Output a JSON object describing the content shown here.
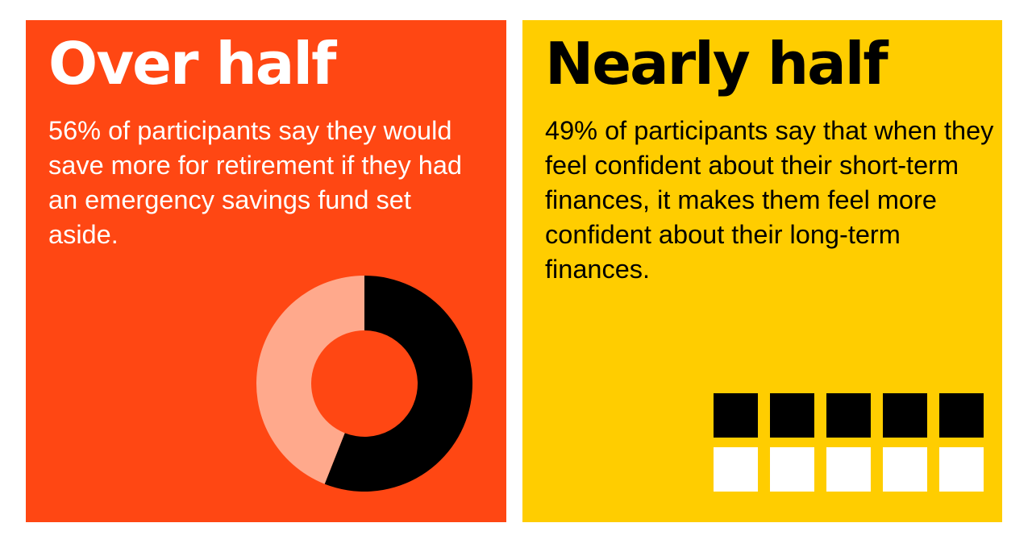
{
  "left_panel": {
    "headline": "Over half",
    "body": "56% of participants say they would save more for retirement if they had an emergency savings fund set aside.",
    "background": "#ff4713"
  },
  "right_panel": {
    "headline": "Nearly half",
    "body": "49% of participants say that when they feel confident about their short-term finances, it makes them feel more confident about their long-term finances.",
    "background": "#ffcd00"
  },
  "chart_data": [
    {
      "type": "pie",
      "slices": [
        {
          "value": 56,
          "color": "#000000"
        },
        {
          "value": 44,
          "color": "#ffa98c"
        }
      ]
    },
    {
      "type": "pictogram",
      "total": 10,
      "filled": 5,
      "filled_color": "#000000",
      "empty_color": "#ffffff"
    }
  ]
}
